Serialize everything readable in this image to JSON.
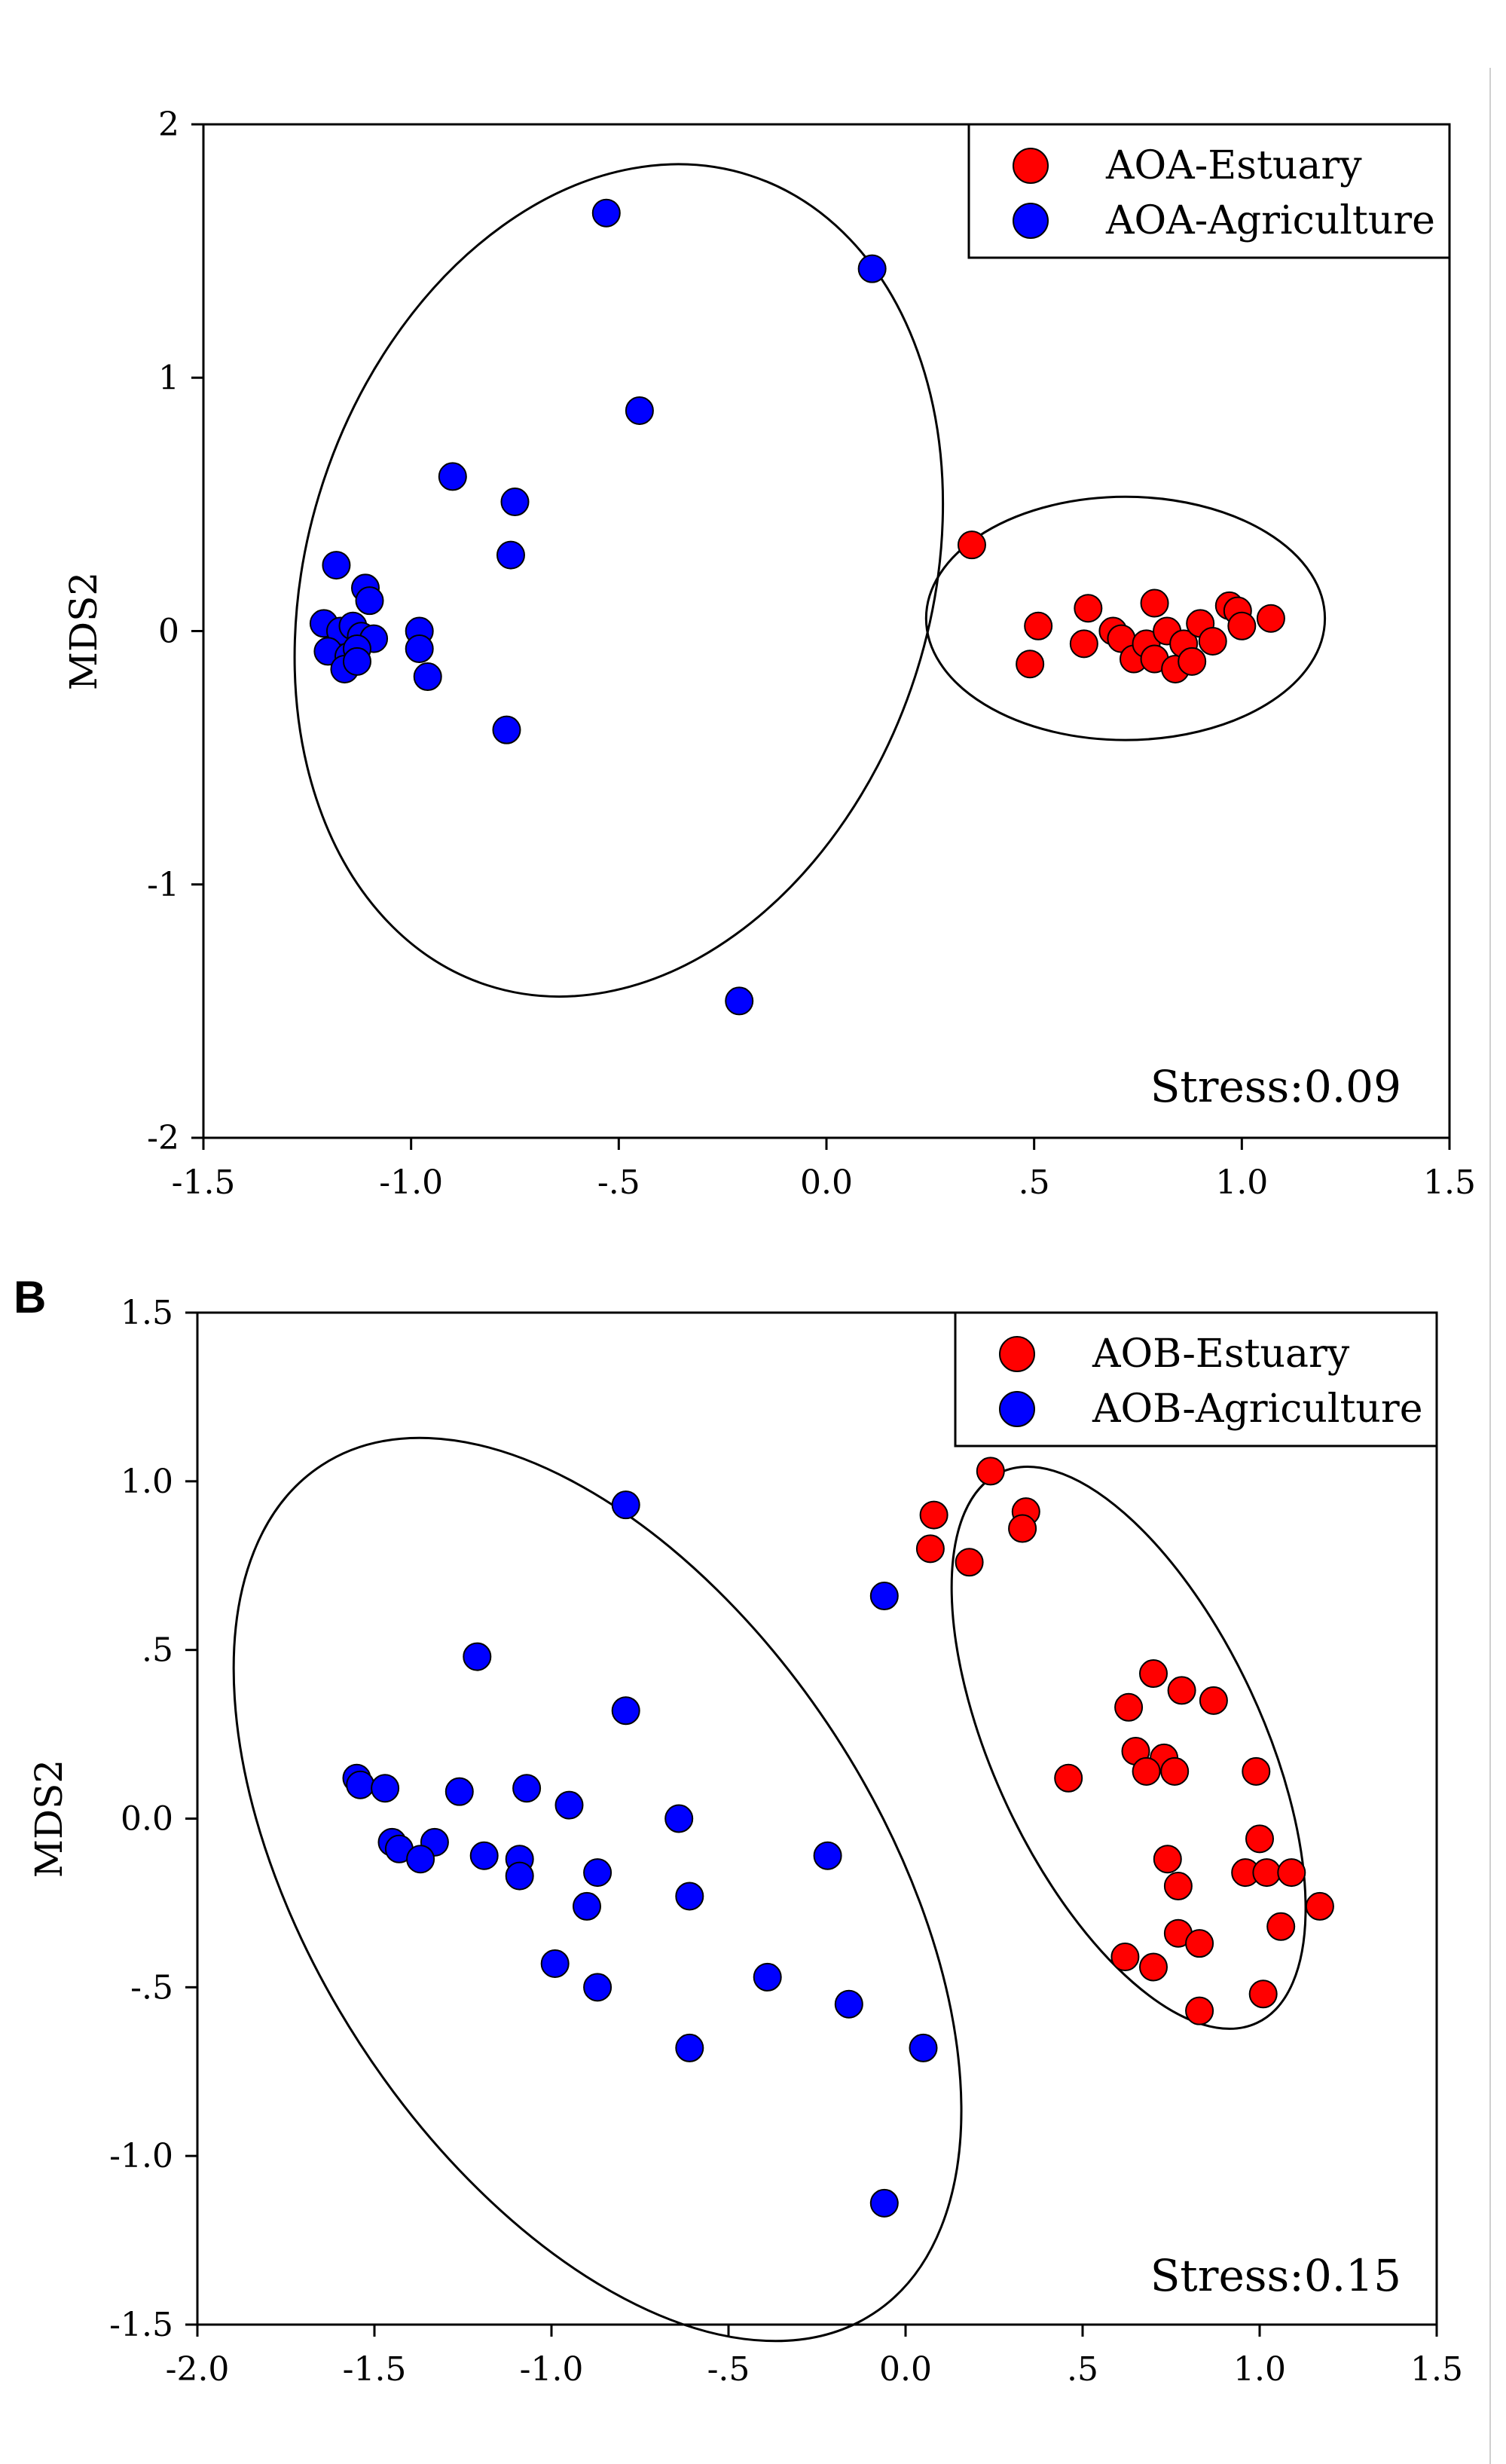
{
  "chart_data": [
    {
      "type": "scatter",
      "panel_label": "",
      "xlabel": "",
      "ylabel": "MDS2",
      "xlim": [
        -1.5,
        1.5
      ],
      "ylim": [
        -2,
        2
      ],
      "x_ticks": [
        -1.5,
        -1.0,
        -0.5,
        0.0,
        0.5,
        1.0,
        1.5
      ],
      "x_tick_labels": [
        "-1.5",
        "-1.0",
        "-.5",
        "0.0",
        ".5",
        "1.0",
        "1.5"
      ],
      "y_ticks": [
        -2,
        -1,
        0,
        1,
        2
      ],
      "y_tick_labels": [
        "-2",
        "-1",
        "0",
        "1",
        "2"
      ],
      "legend_position": "top-right",
      "annotation": "Stress:0.09",
      "series": [
        {
          "name": "AOA-Estuary",
          "color": "#ff0000",
          "points": [
            [
              0.35,
              0.34
            ],
            [
              0.49,
              -0.13
            ],
            [
              0.51,
              0.02
            ],
            [
              0.62,
              -0.05
            ],
            [
              0.63,
              0.09
            ],
            [
              0.69,
              0.0
            ],
            [
              0.71,
              -0.03
            ],
            [
              0.74,
              -0.11
            ],
            [
              0.77,
              -0.05
            ],
            [
              0.79,
              0.11
            ],
            [
              0.79,
              -0.11
            ],
            [
              0.82,
              0.0
            ],
            [
              0.84,
              -0.15
            ],
            [
              0.86,
              -0.05
            ],
            [
              0.88,
              -0.12
            ],
            [
              0.9,
              0.03
            ],
            [
              0.93,
              -0.04
            ],
            [
              0.97,
              0.1
            ],
            [
              0.99,
              0.08
            ],
            [
              1.0,
              0.02
            ],
            [
              1.07,
              0.05
            ]
          ]
        },
        {
          "name": "AOA-Agriculture",
          "color": "#0000ff",
          "points": [
            [
              -0.53,
              1.65
            ],
            [
              0.11,
              1.43
            ],
            [
              -0.45,
              0.87
            ],
            [
              -0.9,
              0.61
            ],
            [
              -0.75,
              0.51
            ],
            [
              -0.76,
              0.3
            ],
            [
              -1.18,
              0.26
            ],
            [
              -1.11,
              0.17
            ],
            [
              -1.1,
              0.12
            ],
            [
              -1.21,
              0.03
            ],
            [
              -1.17,
              0.0
            ],
            [
              -1.14,
              0.02
            ],
            [
              -1.12,
              -0.02
            ],
            [
              -1.09,
              -0.03
            ],
            [
              -1.2,
              -0.08
            ],
            [
              -1.15,
              -0.1
            ],
            [
              -1.13,
              -0.07
            ],
            [
              -1.16,
              -0.15
            ],
            [
              -1.13,
              -0.12
            ],
            [
              -0.98,
              0.0
            ],
            [
              -0.98,
              -0.07
            ],
            [
              -0.96,
              -0.18
            ],
            [
              -0.77,
              -0.39
            ],
            [
              -0.21,
              -1.46
            ]
          ]
        }
      ],
      "ellipses": [
        {
          "cx": -0.5,
          "cy": 0.2,
          "rx": 0.75,
          "ry": 1.68,
          "rotate_deg": 18
        },
        {
          "cx": 0.72,
          "cy": 0.05,
          "rx": 0.48,
          "ry": 0.48,
          "rotate_deg": 0
        }
      ]
    },
    {
      "type": "scatter",
      "panel_label": "B",
      "xlabel": "",
      "ylabel": "MDS2",
      "xlim": [
        -2.0,
        1.5
      ],
      "ylim": [
        -1.5,
        1.5
      ],
      "x_ticks": [
        -2.0,
        -1.5,
        -1.0,
        -0.5,
        0.0,
        0.5,
        1.0,
        1.5
      ],
      "x_tick_labels": [
        "-2.0",
        "-1.5",
        "-1.0",
        "-.5",
        "0.0",
        ".5",
        "1.0",
        "1.5"
      ],
      "y_ticks": [
        -1.5,
        -1.0,
        -0.5,
        0.0,
        0.5,
        1.0,
        1.5
      ],
      "y_tick_labels": [
        "-1.5",
        "-1.0",
        "-.5",
        "0.0",
        ".5",
        "1.0",
        "1.5"
      ],
      "legend_position": "top-right",
      "annotation": "Stress:0.15",
      "series": [
        {
          "name": "AOB-Estuary",
          "color": "#ff0000",
          "points": [
            [
              0.24,
              1.03
            ],
            [
              0.08,
              0.9
            ],
            [
              0.34,
              0.91
            ],
            [
              0.33,
              0.86
            ],
            [
              0.07,
              0.8
            ],
            [
              0.18,
              0.76
            ],
            [
              0.7,
              0.43
            ],
            [
              0.78,
              0.38
            ],
            [
              0.87,
              0.35
            ],
            [
              0.63,
              0.33
            ],
            [
              0.65,
              0.2
            ],
            [
              0.73,
              0.18
            ],
            [
              0.68,
              0.14
            ],
            [
              0.76,
              0.14
            ],
            [
              0.46,
              0.12
            ],
            [
              0.99,
              0.14
            ],
            [
              1.0,
              -0.06
            ],
            [
              0.74,
              -0.12
            ],
            [
              0.96,
              -0.16
            ],
            [
              1.02,
              -0.16
            ],
            [
              1.09,
              -0.16
            ],
            [
              0.77,
              -0.2
            ],
            [
              1.17,
              -0.26
            ],
            [
              1.06,
              -0.32
            ],
            [
              0.77,
              -0.34
            ],
            [
              0.83,
              -0.37
            ],
            [
              0.62,
              -0.41
            ],
            [
              0.7,
              -0.44
            ],
            [
              1.01,
              -0.52
            ],
            [
              0.83,
              -0.57
            ]
          ]
        },
        {
          "name": "AOB-Agriculture",
          "color": "#0000ff",
          "points": [
            [
              -0.79,
              0.93
            ],
            [
              -0.06,
              0.66
            ],
            [
              -1.21,
              0.48
            ],
            [
              -0.79,
              0.32
            ],
            [
              -1.55,
              0.12
            ],
            [
              -1.54,
              0.1
            ],
            [
              -1.47,
              0.09
            ],
            [
              -1.26,
              0.08
            ],
            [
              -1.07,
              0.09
            ],
            [
              -0.95,
              0.04
            ],
            [
              -0.64,
              0.0
            ],
            [
              -1.45,
              -0.07
            ],
            [
              -1.33,
              -0.07
            ],
            [
              -1.43,
              -0.09
            ],
            [
              -1.19,
              -0.11
            ],
            [
              -1.37,
              -0.12
            ],
            [
              -1.09,
              -0.12
            ],
            [
              -0.22,
              -0.11
            ],
            [
              -0.87,
              -0.16
            ],
            [
              -1.09,
              -0.17
            ],
            [
              -0.61,
              -0.23
            ],
            [
              -0.9,
              -0.26
            ],
            [
              -0.99,
              -0.43
            ],
            [
              -0.39,
              -0.47
            ],
            [
              -0.87,
              -0.5
            ],
            [
              -0.16,
              -0.55
            ],
            [
              -0.61,
              -0.68
            ],
            [
              0.05,
              -0.68
            ],
            [
              -0.06,
              -1.14
            ]
          ]
        }
      ],
      "ellipses": [
        {
          "cx": -0.87,
          "cy": -0.21,
          "rx": 0.8,
          "ry": 1.5,
          "rotate_deg": -33
        },
        {
          "cx": 0.63,
          "cy": 0.21,
          "rx": 0.38,
          "ry": 0.9,
          "rotate_deg": -25
        }
      ]
    }
  ]
}
